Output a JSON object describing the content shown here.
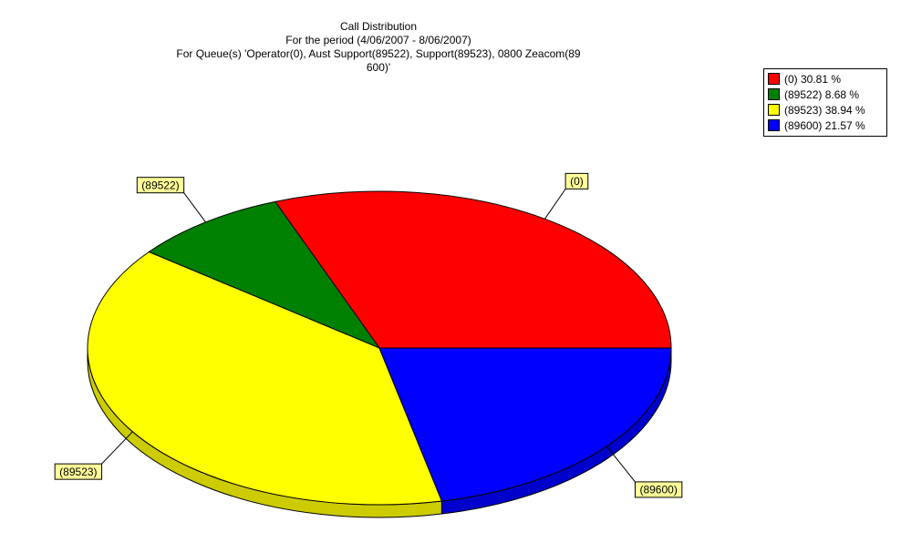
{
  "chart_data": {
    "type": "pie",
    "title": "Call Distribution",
    "subtitle_lines": [
      "For the period (4/06/2007 - 8/06/2007)",
      "For Queue(s) 'Operator(0), Aust Support(89522), Support(89523), 0800 Zeacom(89",
      "600)'"
    ],
    "slices": [
      {
        "label": "(0)",
        "value": 30.81,
        "legend": "(0) 30.81 %",
        "color": "#ff0000"
      },
      {
        "label": "(89522)",
        "value": 8.68,
        "legend": "(89522) 8.68 %",
        "color": "#008000"
      },
      {
        "label": "(89523)",
        "value": 38.94,
        "legend": "(89523) 38.94 %",
        "color": "#ffff00"
      },
      {
        "label": "(89600)",
        "value": 21.57,
        "legend": "(89600) 21.57 %",
        "color": "#0000ff"
      }
    ],
    "legend_position": "top-right"
  }
}
